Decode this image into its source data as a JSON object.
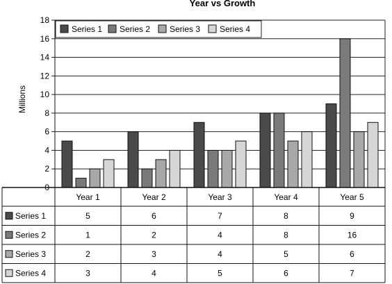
{
  "chart_data": {
    "type": "bar",
    "title": "Year vs Growth",
    "xlabel": "",
    "ylabel": "Millions",
    "ylim": [
      0,
      18
    ],
    "yticks": [
      0,
      2,
      4,
      6,
      8,
      10,
      12,
      14,
      16,
      18
    ],
    "grid": "horizontal",
    "legend": "top-left",
    "categories": [
      "Year 1",
      "Year 2",
      "Year 3",
      "Year 4",
      "Year 5"
    ],
    "series": [
      {
        "name": "Series 1",
        "values": [
          5,
          6,
          7,
          8,
          9
        ],
        "color": "#4a4a4a"
      },
      {
        "name": "Series 2",
        "values": [
          1,
          2,
          4,
          8,
          16
        ],
        "color": "#7a7a7a"
      },
      {
        "name": "Series 3",
        "values": [
          2,
          3,
          4,
          5,
          6
        ],
        "color": "#a8a8a8"
      },
      {
        "name": "Series 4",
        "values": [
          3,
          4,
          5,
          6,
          7
        ],
        "color": "#d6d6d6"
      }
    ],
    "data_table": true
  }
}
